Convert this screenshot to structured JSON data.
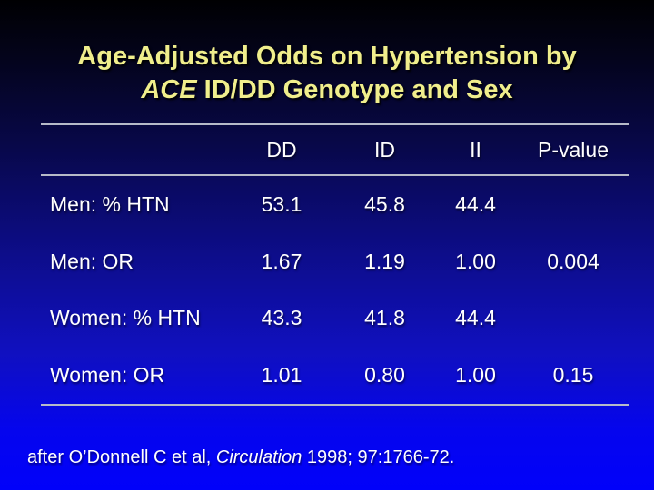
{
  "slide": {
    "title": {
      "line1": "Age-Adjusted Odds on Hypertension by",
      "line2_gene": "ACE",
      "line2_rest": " ID/DD Genotype and Sex"
    },
    "footer": {
      "prefix": "after O’Donnell C et al, ",
      "journal": "Circulation",
      "suffix": " 1998; 97:1766-72."
    }
  },
  "table": {
    "headers": [
      "DD",
      "ID",
      "II",
      "P-value"
    ],
    "rows": [
      {
        "label": "Men: % HTN",
        "values": [
          "53.1",
          "45.8",
          "44.4",
          ""
        ]
      },
      {
        "label": "Men: OR",
        "values": [
          "1.67",
          "1.19",
          "1.00",
          "0.004"
        ]
      },
      {
        "label": "Women: % HTN",
        "values": [
          "43.3",
          "41.8",
          "44.4",
          ""
        ]
      },
      {
        "label": "Women: OR",
        "values": [
          "1.01",
          "0.80",
          "1.00",
          "0.15"
        ]
      }
    ]
  },
  "chart_data": {
    "type": "table",
    "title": "Age-Adjusted Odds on Hypertension by ACE ID/DD Genotype and Sex",
    "columns": [
      "",
      "DD",
      "ID",
      "II",
      "P-value"
    ],
    "rows": [
      [
        "Men: % HTN",
        53.1,
        45.8,
        44.4,
        null
      ],
      [
        "Men: OR",
        1.67,
        1.19,
        1.0,
        0.004
      ],
      [
        "Women: % HTN",
        43.3,
        41.8,
        44.4,
        null
      ],
      [
        "Women: OR",
        1.01,
        0.8,
        1.0,
        0.15
      ]
    ],
    "source": "after O’Donnell C et al, Circulation 1998; 97:1766-72."
  },
  "colors": {
    "title_text": "#f0ee8c",
    "body_text": "#ffffff",
    "rule": "#b6bac8",
    "background_top": "#000002",
    "background_bottom": "#0101fa"
  }
}
